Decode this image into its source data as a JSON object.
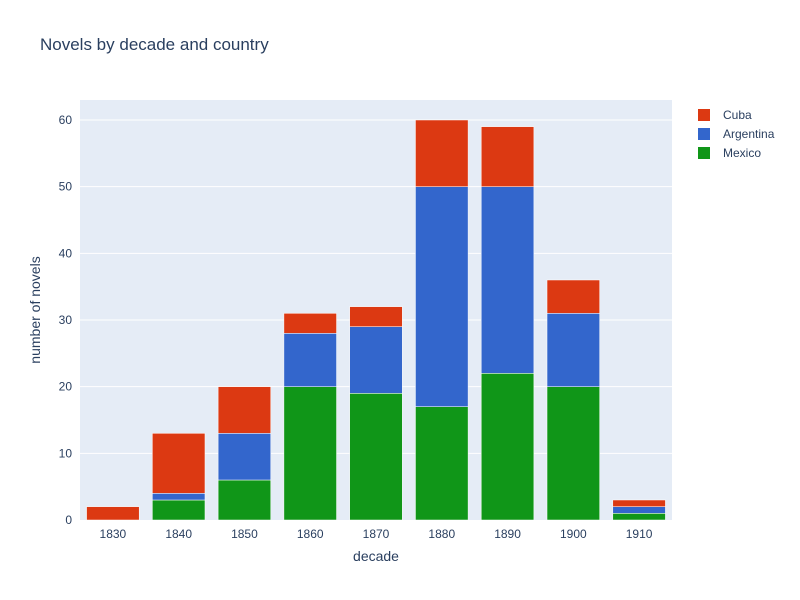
{
  "chart_data": {
    "type": "bar",
    "barmode": "stack",
    "title": "Novels by decade and country",
    "xlabel": "decade",
    "ylabel": "number of novels",
    "categories": [
      "1830",
      "1840",
      "1850",
      "1860",
      "1870",
      "1880",
      "1890",
      "1900",
      "1910"
    ],
    "ylim": [
      0,
      63
    ],
    "yticks": [
      0,
      10,
      20,
      30,
      40,
      50,
      60
    ],
    "grid": true,
    "legend_position": "top-right",
    "series": [
      {
        "name": "Mexico",
        "color": "#109618",
        "values": [
          0,
          3,
          6,
          20,
          19,
          17,
          22,
          20,
          1
        ]
      },
      {
        "name": "Argentina",
        "color": "#3366cc",
        "values": [
          0,
          1,
          7,
          8,
          10,
          33,
          28,
          11,
          1
        ]
      },
      {
        "name": "Cuba",
        "color": "#dc3912",
        "values": [
          2,
          9,
          7,
          3,
          3,
          10,
          9,
          5,
          1
        ]
      }
    ],
    "legend_order": [
      "Cuba",
      "Argentina",
      "Mexico"
    ],
    "plot_background": "#e5ecf6"
  }
}
